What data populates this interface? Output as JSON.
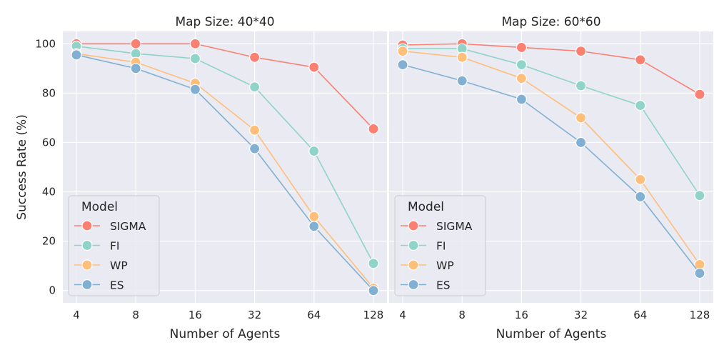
{
  "figure": {
    "ylabel": "Success Rate (%)"
  },
  "legend_title": "Model",
  "colors": {
    "SIGMA": "#fa8072",
    "FI": "#8fd3c9",
    "WP": "#ffbe7a",
    "ES": "#82b0d2",
    "plot_bg": "#eaeaf2",
    "grid": "#ffffff"
  },
  "chart_data": [
    {
      "type": "line",
      "title": "Map Size: 40*40",
      "xlabel": "Number of Agents",
      "ylabel": "Success Rate (%)",
      "x_categories": [
        "4",
        "8",
        "16",
        "32",
        "64",
        "128"
      ],
      "yticks": [
        "0",
        "20",
        "40",
        "60",
        "80",
        "100"
      ],
      "ylim": [
        -5,
        105
      ],
      "legend": "lower-left",
      "series": [
        {
          "name": "SIGMA",
          "values": [
            100,
            100,
            100,
            94.5,
            90.5,
            65.5
          ]
        },
        {
          "name": "FI",
          "values": [
            99,
            96,
            94,
            82.5,
            56.5,
            11
          ]
        },
        {
          "name": "WP",
          "values": [
            96,
            92.5,
            84,
            65,
            30,
            1
          ]
        },
        {
          "name": "ES",
          "values": [
            95.5,
            90,
            81.5,
            57.5,
            26,
            0
          ]
        }
      ]
    },
    {
      "type": "line",
      "title": "Map Size: 60*60",
      "xlabel": "Number of Agents",
      "ylabel": "",
      "x_categories": [
        "4",
        "8",
        "16",
        "32",
        "64",
        "128"
      ],
      "yticks": [
        "0",
        "20",
        "40",
        "60",
        "80",
        "100"
      ],
      "ylim": [
        -5,
        105
      ],
      "legend": "lower-left",
      "series": [
        {
          "name": "SIGMA",
          "values": [
            99.5,
            100,
            98.5,
            97,
            93.5,
            79.5
          ]
        },
        {
          "name": "FI",
          "values": [
            98,
            98,
            91.5,
            83,
            75,
            38.5
          ]
        },
        {
          "name": "WP",
          "values": [
            97,
            94.5,
            86,
            70,
            45,
            10.5
          ]
        },
        {
          "name": "ES",
          "values": [
            91.5,
            85,
            77.5,
            60,
            38,
            7
          ]
        }
      ]
    }
  ]
}
